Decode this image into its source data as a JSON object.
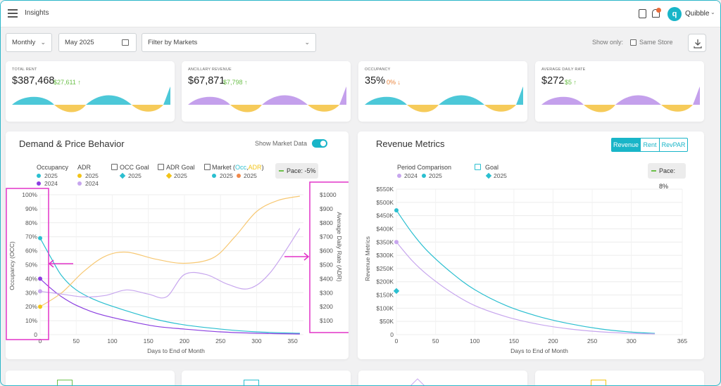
{
  "header": {
    "title": "Insights",
    "brand": "Quibble",
    "brand_logo_letter": "q"
  },
  "filters": {
    "period": "Monthly",
    "month": "May 2025",
    "markets_placeholder": "Filter by Markets",
    "show_only": "Show only:",
    "same_store": "Same Store"
  },
  "kpis": [
    {
      "label": "Total Rent",
      "value": "$387,468",
      "delta": "$27,611 ↑",
      "delta_color": "#6cc04a"
    },
    {
      "label": "Ancillary Revenue",
      "value": "$67,871",
      "delta": "$7,798 ↑",
      "delta_color": "#6cc04a"
    },
    {
      "label": "Occupancy",
      "value": "35%",
      "delta": "0% ↓",
      "delta_color": "#e9823a"
    },
    {
      "label": "Average Daily Rate",
      "value": "$272",
      "delta": "$5 ↑",
      "delta_color": "#6cc04a"
    }
  ],
  "colors": {
    "teal": "#2bbfd0",
    "purple": "#8b3fe0",
    "light_purple": "#c7a6ee",
    "yellow": "#f2c418",
    "orange_light": "#f7c873",
    "market_orange": "#f0884a",
    "magenta": "#e233c8"
  },
  "demand": {
    "title": "Demand & Price Behavior",
    "show_market": "Show Market Data",
    "legend": {
      "occupancy": "Occupancy",
      "adr": "ADR",
      "occ_goal": "OCC Goal",
      "adr_goal": "ADR Goal",
      "market": "Market (",
      "market_occ": "Occ",
      "market_sep": ",",
      "market_adr": "ADR",
      "market_close": ")",
      "y2025": "2025",
      "y2024": "2024"
    },
    "pace": "Pace: -5%"
  },
  "revenue": {
    "title": "Revenue Metrics",
    "tabs": [
      "Revenue",
      "Rent",
      "RevPAR"
    ],
    "legend": {
      "period": "Period Comparison",
      "goal": "Goal",
      "y2024": "2024",
      "y2025": "2025"
    },
    "pace": "Pace: 8%"
  },
  "chart_data": [
    {
      "type": "line",
      "title": "Demand & Price Behavior",
      "xlabel": "Days to End of Month",
      "ylabel": "Occupancy (OCC)",
      "y2label": "Average Daily Rate (ADR)",
      "xlim": [
        0,
        365
      ],
      "ylim": [
        0,
        100
      ],
      "y2lim": [
        0,
        1000
      ],
      "x_ticks": [
        "0",
        "50",
        "100",
        "150",
        "200",
        "250",
        "300",
        "350"
      ],
      "y_ticks": [
        "0",
        "10%",
        "20%",
        "30%",
        "40%",
        "50%",
        "60%",
        "70%",
        "80%",
        "90%",
        "100%"
      ],
      "y2_ticks": [
        "$100",
        "$200",
        "$300",
        "$400",
        "$500",
        "$600",
        "$700",
        "$800",
        "$900",
        "$1000"
      ],
      "series": [
        {
          "name": "Occupancy 2025",
          "color": "#2bbfd0",
          "x": [
            0,
            15,
            30,
            50,
            80,
            120,
            160,
            200,
            250,
            300,
            360
          ],
          "y": [
            69,
            55,
            42,
            32,
            24,
            17,
            11,
            7,
            4,
            2,
            1
          ]
        },
        {
          "name": "Occupancy 2024",
          "color": "#8b3fe0",
          "x": [
            0,
            15,
            30,
            50,
            80,
            120,
            160,
            200,
            250,
            300,
            360
          ],
          "y": [
            40,
            33,
            27,
            21,
            15,
            10,
            6,
            4,
            2,
            1,
            0.5
          ]
        },
        {
          "name": "ADR 2025",
          "color": "#f7c873",
          "x": [
            0,
            30,
            60,
            90,
            120,
            160,
            200,
            240,
            270,
            300,
            330,
            360
          ],
          "y": [
            200,
            300,
            450,
            560,
            590,
            540,
            510,
            550,
            700,
            880,
            960,
            990
          ]
        },
        {
          "name": "ADR 2024",
          "color": "#c7a6ee",
          "x": [
            0,
            30,
            60,
            90,
            120,
            150,
            175,
            200,
            230,
            260,
            290,
            320,
            360
          ],
          "y": [
            310,
            290,
            270,
            280,
            320,
            290,
            270,
            430,
            430,
            360,
            330,
            450,
            760
          ]
        }
      ]
    },
    {
      "type": "line",
      "title": "Revenue Metrics",
      "xlabel": "Days to End of Month",
      "ylabel": "Revenue Metrics",
      "xlim": [
        0,
        365
      ],
      "ylim": [
        0,
        550000
      ],
      "x_ticks": [
        "0",
        "50",
        "100",
        "150",
        "200",
        "250",
        "300",
        "365"
      ],
      "y_ticks": [
        "0",
        "$50K",
        "$100K",
        "$150K",
        "$200K",
        "$250K",
        "$300K",
        "$350K",
        "$400K",
        "$450K",
        "$500K",
        "$550K"
      ],
      "series": [
        {
          "name": "2025",
          "color": "#2bbfd0",
          "x": [
            0,
            20,
            40,
            70,
            100,
            140,
            180,
            220,
            260,
            300,
            330
          ],
          "y": [
            470000,
            385000,
            315000,
            235000,
            170000,
            110000,
            70000,
            42000,
            22000,
            10000,
            5000
          ]
        },
        {
          "name": "2024",
          "color": "#c7a6ee",
          "x": [
            0,
            20,
            40,
            70,
            100,
            140,
            180,
            220,
            260,
            300,
            330
          ],
          "y": [
            350000,
            280000,
            225000,
            160000,
            110000,
            68000,
            40000,
            22000,
            11000,
            5000,
            3000
          ]
        }
      ],
      "goal": {
        "name": "Goal 2025",
        "x": 0,
        "y": 165000
      }
    }
  ]
}
